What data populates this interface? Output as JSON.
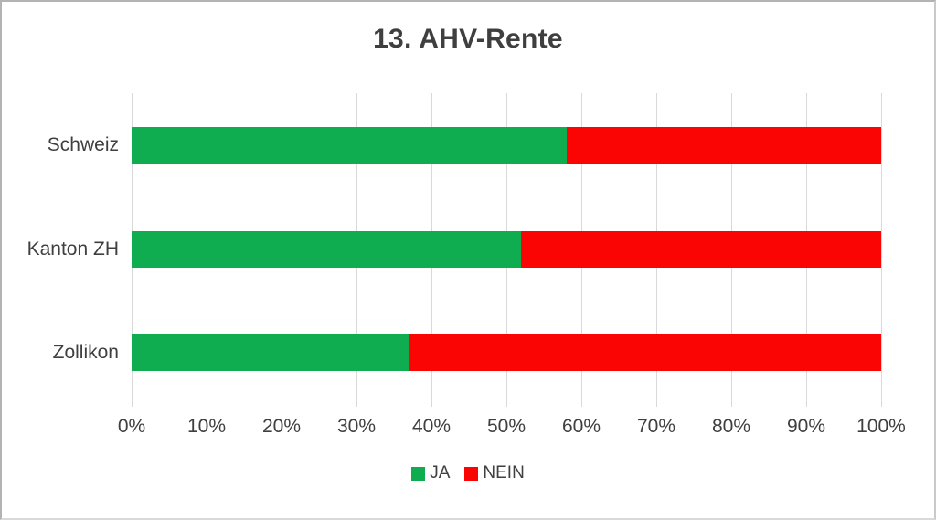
{
  "title": "13. AHV-Rente",
  "chart_data": {
    "type": "bar",
    "orientation": "horizontal",
    "stacked": true,
    "units": "percent",
    "title": "13. AHV-Rente",
    "categories": [
      "Schweiz",
      "Kanton ZH",
      "Zollikon"
    ],
    "series": [
      {
        "name": "JA",
        "color": "#0fad4f",
        "values": [
          58,
          52,
          37
        ]
      },
      {
        "name": "NEIN",
        "color": "#fb0404",
        "values": [
          42,
          48,
          63
        ]
      }
    ],
    "x_tick_labels": [
      "0%",
      "10%",
      "20%",
      "30%",
      "40%",
      "50%",
      "60%",
      "70%",
      "80%",
      "90%",
      "100%"
    ],
    "xlim": [
      0,
      100
    ],
    "grid": "vertical",
    "gridline_color": "#d9d9d9",
    "text_color": "#3f3f3f",
    "legend_position": "bottom"
  }
}
